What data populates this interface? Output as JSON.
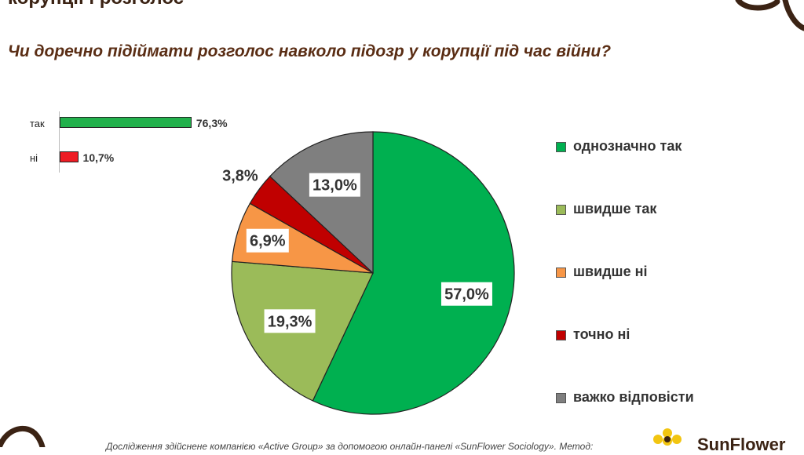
{
  "header": {
    "partial_title": "корупції і розголос",
    "question": "Чи доречно підіймати розголос навколо підозр у корупції під час війни?"
  },
  "summary": [
    {
      "label": "так",
      "value": 76.3,
      "value_label": "76,3%",
      "color": "#22b14c"
    },
    {
      "label": "ні",
      "value": 10.7,
      "value_label": "10,7%",
      "color": "#ee1c24"
    }
  ],
  "chart_data": {
    "type": "pie",
    "title": "Чи доречно підіймати розголос навколо підозр у корупції під час війни?",
    "legend_placement": "right",
    "slices": [
      {
        "label": "однозначно так",
        "value": 57.0,
        "value_label": "57,0%",
        "color": "#00b050"
      },
      {
        "label": "швидше так",
        "value": 19.3,
        "value_label": "19,3%",
        "color": "#9bbb59"
      },
      {
        "label": "швидше ні",
        "value": 6.9,
        "value_label": "6,9%",
        "color": "#f79646"
      },
      {
        "label": "точно ні",
        "value": 3.8,
        "value_label": "3,8%",
        "color": "#c00000"
      },
      {
        "label": "важко відповісти",
        "value": 13.0,
        "value_label": "13,0%",
        "color": "#7f7f7f"
      }
    ]
  },
  "footer": {
    "text": "Дослідження здійснене компанією «Active Group» за допомогою онлайн-панелі «SunFlower Sociology». Метод:",
    "brand": "SunFlower"
  },
  "decor": {
    "accent": "#3b2314"
  }
}
